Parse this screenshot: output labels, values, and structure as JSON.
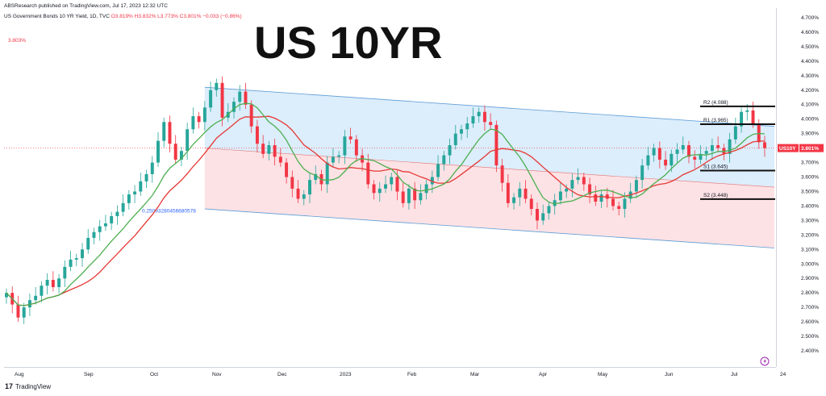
{
  "header": {
    "publisher": "ABSResearch published on TradingView.com, Jul 17, 2023 12:32 UTC",
    "instrument": "US Government Bonds 10 YR Yield, 1D, TVC",
    "ohlc": "O3.819% H3.832% L3.773% C3.801% −0.033 (−0.86%)",
    "prev_close": "3.803%"
  },
  "title": "US 10YR",
  "footer": {
    "brand": "TradingView",
    "logo": "17"
  },
  "colors": {
    "up": "#26a69a",
    "down": "#f23645",
    "ma_green": "#4caf50",
    "ma_red": "#e53935",
    "channel_upper_fill": "#d6eafa",
    "channel_lower_fill": "#fbdde0",
    "channel_line": "#5b9bd5"
  },
  "chart_data": {
    "type": "candlestick",
    "symbol": "US10Y",
    "last_price_label": "3.801%",
    "ylim": [
      2.3,
      4.8
    ],
    "y_ticks": [
      "2.400%",
      "2.500%",
      "2.600%",
      "2.700%",
      "2.800%",
      "2.900%",
      "3.000%",
      "3.100%",
      "3.200%",
      "3.300%",
      "3.400%",
      "3.500%",
      "3.600%",
      "3.700%",
      "3.800%",
      "3.900%",
      "4.000%",
      "4.100%",
      "4.200%",
      "4.300%",
      "4.400%",
      "4.500%",
      "4.600%",
      "4.700%"
    ],
    "x_labels": [
      "Aug",
      "Sep",
      "Oct",
      "Nov",
      "Dec",
      "2023",
      "Feb",
      "Mar",
      "Apr",
      "May",
      "Jun",
      "Jul",
      "24"
    ],
    "pivots": [
      {
        "label": "R2",
        "value": 4.088,
        "text": "R2 (4.088)"
      },
      {
        "label": "R1",
        "value": 3.965,
        "text": "R1 (3.965)"
      },
      {
        "label": "S1",
        "value": 3.645,
        "text": "S1 (3.645)"
      },
      {
        "label": "S2",
        "value": 3.448,
        "text": "S2 (3.448)"
      }
    ],
    "channel_label": "0.25093280456680578",
    "series": [
      {
        "name": "close",
        "values": [
          2.8,
          2.72,
          2.63,
          2.7,
          2.75,
          2.78,
          2.85,
          2.89,
          2.84,
          2.9,
          2.98,
          3.03,
          3.04,
          3.1,
          3.18,
          3.22,
          3.26,
          3.28,
          3.33,
          3.36,
          3.42,
          3.48,
          3.5,
          3.57,
          3.62,
          3.7,
          3.85,
          3.98,
          3.83,
          3.72,
          3.78,
          3.93,
          4.02,
          3.98,
          4.08,
          4.2,
          4.25,
          4.01,
          4.05,
          4.12,
          4.19,
          4.1,
          3.95,
          3.83,
          3.76,
          3.82,
          3.74,
          3.7,
          3.6,
          3.52,
          3.45,
          3.48,
          3.58,
          3.62,
          3.55,
          3.7,
          3.74,
          3.75,
          3.88,
          3.86,
          3.75,
          3.7,
          3.55,
          3.49,
          3.52,
          3.55,
          3.6,
          3.5,
          3.42,
          3.52,
          3.44,
          3.49,
          3.55,
          3.6,
          3.69,
          3.75,
          3.82,
          3.9,
          3.93,
          3.97,
          4.02,
          4.05,
          3.98,
          3.96,
          3.68,
          3.56,
          3.42,
          3.46,
          3.52,
          3.45,
          3.38,
          3.3,
          3.35,
          3.4,
          3.44,
          3.5,
          3.52,
          3.58,
          3.6,
          3.55,
          3.48,
          3.43,
          3.48,
          3.45,
          3.4,
          3.38,
          3.45,
          3.5,
          3.58,
          3.68,
          3.75,
          3.8,
          3.72,
          3.68,
          3.76,
          3.79,
          3.82,
          3.74,
          3.72,
          3.76,
          3.78,
          3.82,
          3.8,
          3.76,
          3.86,
          3.95,
          4.05,
          4.06,
          3.97,
          3.84,
          3.8
        ]
      }
    ]
  }
}
